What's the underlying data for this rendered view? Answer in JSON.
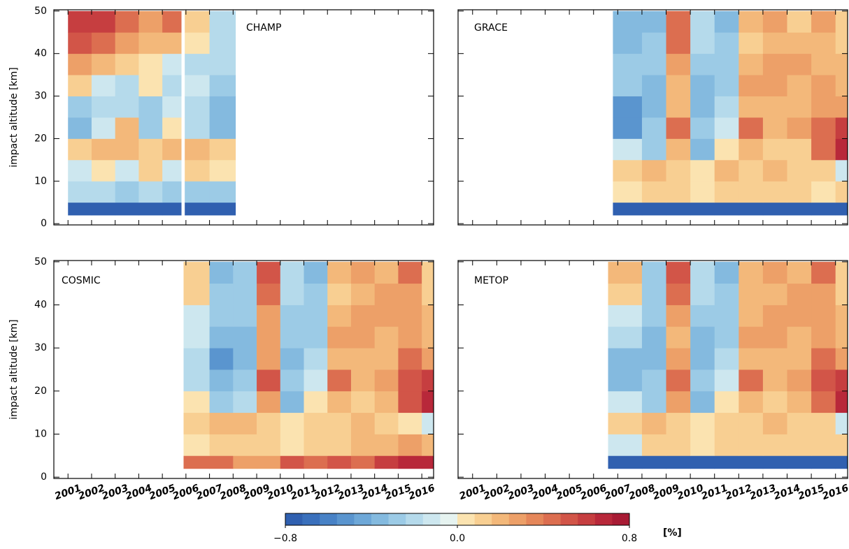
{
  "chart_data": [
    {
      "type": "heatmap",
      "label": "CHAMP",
      "ylabel": "impact altitude [km]",
      "xtick_labels": false,
      "ytick_labels": true,
      "xlim": [
        2000.4,
        2016.5
      ],
      "ylim": [
        -0.3,
        50.3
      ],
      "xticks": [
        2001,
        2002,
        2003,
        2004,
        2005,
        2006,
        2007,
        2008,
        2009,
        2010,
        2011,
        2012,
        2013,
        2014,
        2015,
        2016
      ],
      "yticks": [
        0,
        10,
        20,
        30,
        40,
        50
      ],
      "x_edges": [
        2001.0,
        2002,
        2003,
        2004,
        2005,
        2005.8,
        2005.95,
        2007,
        2008.1
      ],
      "y_edges": [
        2,
        5,
        10,
        15,
        20,
        25,
        30,
        35,
        40,
        45,
        50
      ],
      "values": [
        [
          -0.8,
          -0.8,
          -0.8,
          -0.8,
          -0.8,
          null,
          -0.8,
          -0.8
        ],
        [
          -0.2,
          -0.2,
          -0.3,
          -0.2,
          -0.3,
          null,
          -0.3,
          -0.3
        ],
        [
          -0.1,
          0.0,
          -0.1,
          0.1,
          -0.1,
          null,
          0.1,
          0.0
        ],
        [
          0.1,
          0.2,
          0.2,
          0.1,
          0.2,
          null,
          0.2,
          0.1
        ],
        [
          -0.4,
          -0.1,
          0.2,
          -0.3,
          0.0,
          null,
          -0.2,
          -0.4
        ],
        [
          -0.3,
          -0.2,
          -0.2,
          -0.3,
          -0.1,
          null,
          -0.2,
          -0.4
        ],
        [
          0.1,
          -0.1,
          -0.2,
          0.0,
          -0.2,
          null,
          -0.1,
          -0.3
        ],
        [
          0.3,
          0.2,
          0.1,
          0.0,
          -0.1,
          null,
          -0.2,
          -0.2
        ],
        [
          0.5,
          0.4,
          0.3,
          0.2,
          0.2,
          null,
          0.0,
          -0.2
        ],
        [
          0.6,
          0.6,
          0.4,
          0.3,
          0.4,
          null,
          0.1,
          -0.2
        ]
      ]
    },
    {
      "type": "heatmap",
      "label": "GRACE",
      "xtick_labels": false,
      "ytick_labels": false,
      "xlim": [
        2000.4,
        2016.5
      ],
      "ylim": [
        -0.3,
        50.3
      ],
      "xticks": [
        2001,
        2002,
        2003,
        2004,
        2005,
        2006,
        2007,
        2008,
        2009,
        2010,
        2011,
        2012,
        2013,
        2014,
        2015,
        2016
      ],
      "yticks": [
        0,
        10,
        20,
        30,
        40,
        50
      ],
      "x_edges": [
        2006.8,
        2008,
        2009,
        2010,
        2011,
        2012,
        2013,
        2014,
        2015,
        2016,
        2016.5
      ],
      "y_edges": [
        2,
        5,
        10,
        15,
        20,
        25,
        30,
        35,
        40,
        45,
        50
      ],
      "values": [
        [
          -0.8,
          -0.8,
          -0.8,
          -0.8,
          -0.8,
          -0.8,
          -0.8,
          -0.8,
          -0.8,
          -0.8
        ],
        [
          0.0,
          0.1,
          0.1,
          0.0,
          0.1,
          0.1,
          0.1,
          0.1,
          0.0,
          0.1
        ],
        [
          0.1,
          0.2,
          0.1,
          0.0,
          0.2,
          0.1,
          0.2,
          0.1,
          0.1,
          -0.1
        ],
        [
          -0.1,
          -0.3,
          0.2,
          -0.4,
          0.0,
          0.2,
          0.1,
          0.1,
          0.4,
          0.7
        ],
        [
          -0.5,
          -0.3,
          0.4,
          -0.3,
          -0.1,
          0.4,
          0.2,
          0.3,
          0.4,
          0.6
        ],
        [
          -0.5,
          -0.4,
          0.2,
          -0.4,
          -0.2,
          0.2,
          0.2,
          0.2,
          0.3,
          0.3
        ],
        [
          -0.3,
          -0.4,
          0.2,
          -0.4,
          -0.3,
          0.3,
          0.3,
          0.2,
          0.3,
          0.2
        ],
        [
          -0.3,
          -0.3,
          0.3,
          -0.3,
          -0.3,
          0.2,
          0.3,
          0.3,
          0.2,
          0.2
        ],
        [
          -0.4,
          -0.3,
          0.4,
          -0.2,
          -0.3,
          0.1,
          0.2,
          0.2,
          0.2,
          0.1
        ],
        [
          -0.4,
          -0.4,
          0.4,
          -0.2,
          -0.4,
          0.2,
          0.3,
          0.1,
          0.3,
          0.1
        ]
      ]
    },
    {
      "type": "heatmap",
      "label": "COSMIC",
      "ylabel": "impact altitude [km]",
      "xtick_labels": true,
      "ytick_labels": true,
      "xlim": [
        2000.4,
        2016.5
      ],
      "ylim": [
        -0.3,
        50.3
      ],
      "xticks": [
        2001,
        2002,
        2003,
        2004,
        2005,
        2006,
        2007,
        2008,
        2009,
        2010,
        2011,
        2012,
        2013,
        2014,
        2015,
        2016
      ],
      "yticks": [
        0,
        10,
        20,
        30,
        40,
        50
      ],
      "x_edges": [
        2005.9,
        2007,
        2008,
        2009,
        2010,
        2011,
        2012,
        2013,
        2014,
        2015,
        2016,
        2016.5
      ],
      "y_edges": [
        2,
        5,
        10,
        15,
        20,
        25,
        30,
        35,
        40,
        45,
        50
      ],
      "values": [
        [
          0.4,
          0.4,
          0.3,
          0.3,
          0.5,
          0.4,
          0.5,
          0.4,
          0.6,
          0.7,
          0.7
        ],
        [
          0.0,
          0.1,
          0.1,
          0.1,
          0.0,
          0.1,
          0.1,
          0.2,
          0.2,
          0.3,
          0.2
        ],
        [
          0.1,
          0.2,
          0.2,
          0.1,
          0.0,
          0.1,
          0.1,
          0.2,
          0.1,
          0.0,
          -0.1
        ],
        [
          0.0,
          -0.3,
          -0.2,
          0.3,
          -0.4,
          0.0,
          0.2,
          0.1,
          0.2,
          0.5,
          0.7
        ],
        [
          -0.2,
          -0.4,
          -0.3,
          0.5,
          -0.3,
          -0.1,
          0.4,
          0.2,
          0.3,
          0.5,
          0.6
        ],
        [
          -0.2,
          -0.5,
          -0.4,
          0.3,
          -0.4,
          -0.2,
          0.2,
          0.2,
          0.2,
          0.4,
          0.3
        ],
        [
          -0.1,
          -0.4,
          -0.4,
          0.3,
          -0.3,
          -0.3,
          0.3,
          0.3,
          0.2,
          0.3,
          0.2
        ],
        [
          -0.1,
          -0.3,
          -0.3,
          0.3,
          -0.3,
          -0.3,
          0.2,
          0.3,
          0.3,
          0.3,
          0.2
        ],
        [
          0.1,
          -0.3,
          -0.3,
          0.4,
          -0.2,
          -0.3,
          0.1,
          0.2,
          0.3,
          0.3,
          0.1
        ],
        [
          0.1,
          -0.4,
          -0.3,
          0.5,
          -0.2,
          -0.4,
          0.2,
          0.3,
          0.2,
          0.4,
          0.1
        ]
      ]
    },
    {
      "type": "heatmap",
      "label": "METOP",
      "xtick_labels": true,
      "ytick_labels": false,
      "xlim": [
        2000.4,
        2016.5
      ],
      "ylim": [
        -0.3,
        50.3
      ],
      "xticks": [
        2001,
        2002,
        2003,
        2004,
        2005,
        2006,
        2007,
        2008,
        2009,
        2010,
        2011,
        2012,
        2013,
        2014,
        2015,
        2016
      ],
      "yticks": [
        0,
        10,
        20,
        30,
        40,
        50
      ],
      "x_edges": [
        2006.6,
        2008,
        2009,
        2010,
        2011,
        2012,
        2013,
        2014,
        2015,
        2016,
        2016.5
      ],
      "y_edges": [
        2,
        5,
        10,
        15,
        20,
        25,
        30,
        35,
        40,
        45,
        50
      ],
      "values": [
        [
          -0.8,
          -0.8,
          -0.8,
          -0.8,
          -0.8,
          -0.8,
          -0.8,
          -0.8,
          -0.8,
          -0.8
        ],
        [
          -0.1,
          0.1,
          0.1,
          0.0,
          0.1,
          0.1,
          0.1,
          0.1,
          0.1,
          0.1
        ],
        [
          0.1,
          0.2,
          0.1,
          0.0,
          0.1,
          0.1,
          0.2,
          0.1,
          0.1,
          -0.1
        ],
        [
          -0.1,
          -0.3,
          0.3,
          -0.4,
          0.0,
          0.2,
          0.1,
          0.2,
          0.4,
          0.7
        ],
        [
          -0.4,
          -0.3,
          0.4,
          -0.3,
          -0.1,
          0.4,
          0.2,
          0.3,
          0.5,
          0.6
        ],
        [
          -0.4,
          -0.4,
          0.3,
          -0.4,
          -0.2,
          0.2,
          0.2,
          0.2,
          0.4,
          0.3
        ],
        [
          -0.2,
          -0.4,
          0.2,
          -0.4,
          -0.3,
          0.3,
          0.3,
          0.2,
          0.3,
          0.2
        ],
        [
          -0.1,
          -0.3,
          0.3,
          -0.3,
          -0.3,
          0.2,
          0.3,
          0.3,
          0.3,
          0.2
        ],
        [
          0.1,
          -0.3,
          0.4,
          -0.2,
          -0.3,
          0.2,
          0.2,
          0.3,
          0.3,
          0.1
        ],
        [
          0.2,
          -0.3,
          0.5,
          -0.2,
          -0.4,
          0.2,
          0.3,
          0.2,
          0.4,
          0.1
        ]
      ]
    },
    {
      "type": "colorbar",
      "label": "[%]",
      "xlim": [
        -0.8,
        0.8
      ],
      "xticks": [
        {
          "value": -0.8,
          "label": "−0.8"
        },
        {
          "value": 0,
          "label": "0.0"
        },
        {
          "value": 0.8,
          "label": "0.8"
        }
      ],
      "colors": [
        "#3060b0",
        "#3a70bc",
        "#4882c6",
        "#5a95cf",
        "#6ea8d8",
        "#84badf",
        "#9ccbe6",
        "#b5daeb",
        "#cde7ef",
        "#e6f3f0",
        "#fbe3b0",
        "#f8cf92",
        "#f3b87a",
        "#eda068",
        "#e5875a",
        "#dc6e50",
        "#d25548",
        "#c63e40",
        "#b8283a",
        "#a81b34"
      ]
    }
  ]
}
